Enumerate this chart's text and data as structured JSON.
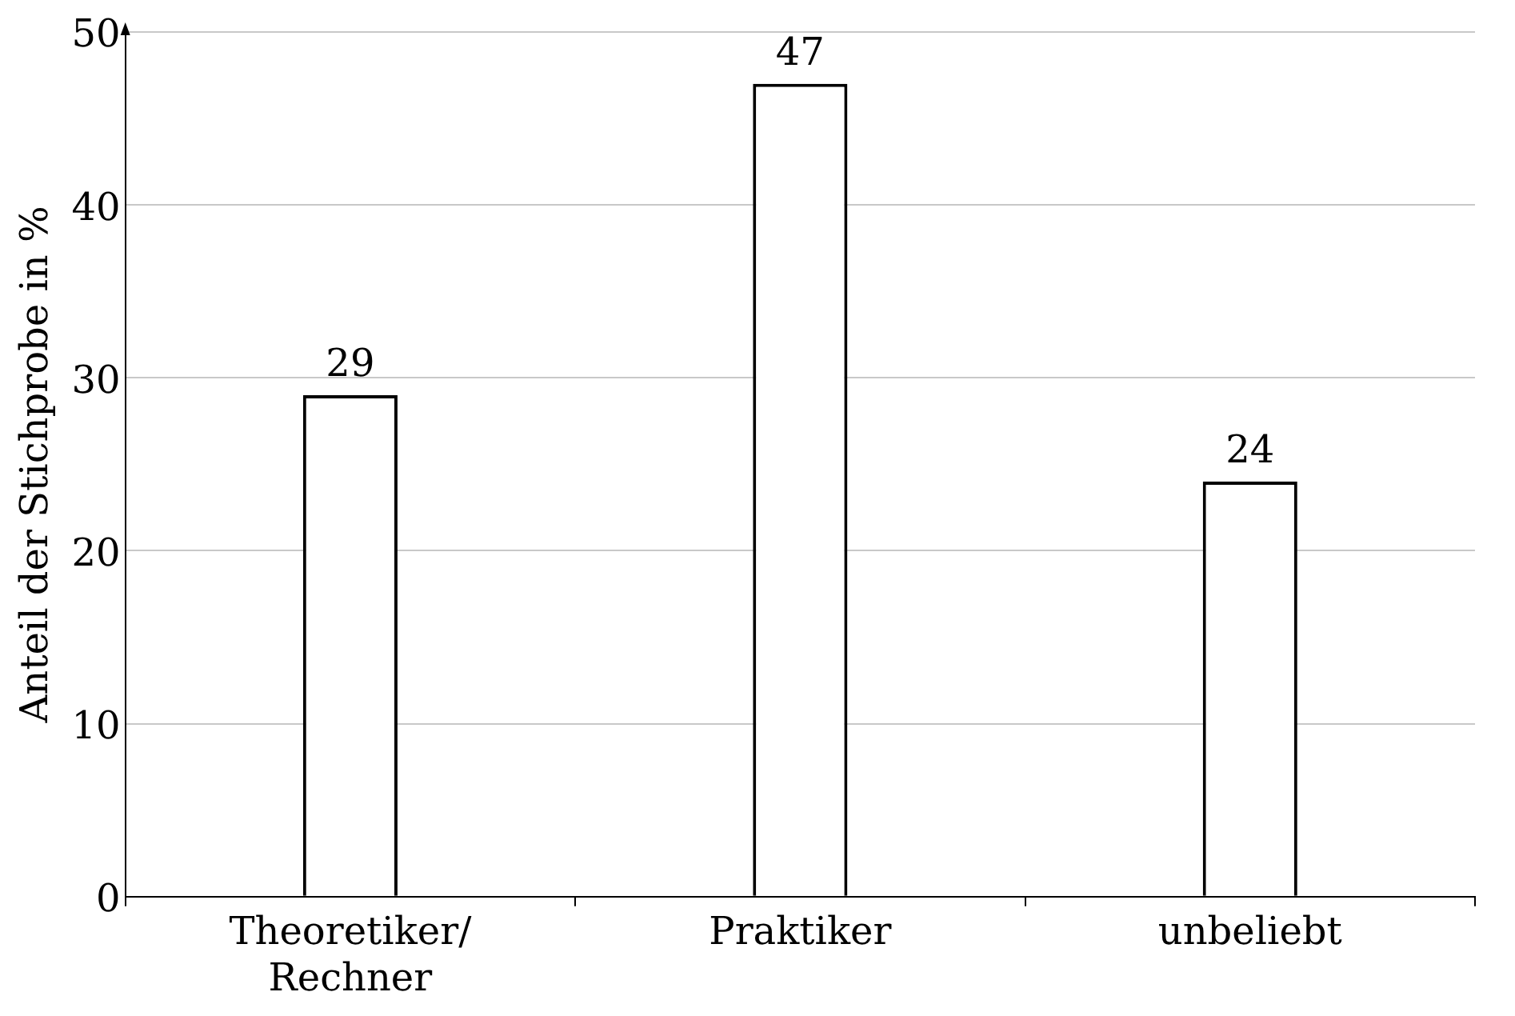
{
  "chart_data": {
    "type": "bar",
    "ylabel": "Anteil der Stichprobe in %",
    "categories": [
      "Theoretiker/\nRechner",
      "Praktiker",
      "unbeliebt"
    ],
    "values": [
      29,
      47,
      24
    ],
    "color": "#ffffff",
    "ylim": [
      0,
      50
    ],
    "yticks": [
      0,
      10,
      20,
      30,
      40,
      50
    ],
    "grid": "y",
    "data_labels": true,
    "legend": false
  }
}
